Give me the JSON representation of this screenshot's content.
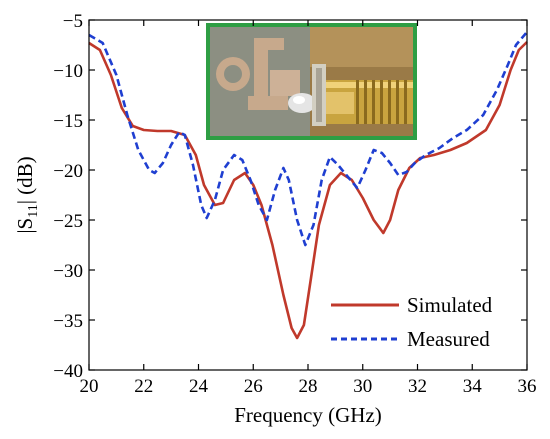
{
  "chart_data": {
    "type": "line",
    "xlabel": "Frequency (GHz)",
    "ylabel_main": "|S",
    "ylabel_sub": "11",
    "ylabel_tail": "| (dB)",
    "xlim": [
      20,
      36
    ],
    "ylim": [
      -40,
      -5
    ],
    "xticks": [
      20,
      22,
      24,
      26,
      28,
      30,
      32,
      34,
      36
    ],
    "yticks": [
      -40,
      -35,
      -30,
      -25,
      -20,
      -15,
      -10,
      -5
    ],
    "grid": false,
    "legend_position": "bottom-right",
    "inset": "antenna-prototype-photo",
    "series": [
      {
        "name": "Simulated",
        "color": "#c0392b",
        "style": "solid",
        "points": [
          [
            20.0,
            -7.3
          ],
          [
            20.4,
            -8.0
          ],
          [
            20.8,
            -10.5
          ],
          [
            21.2,
            -13.8
          ],
          [
            21.6,
            -15.6
          ],
          [
            22.0,
            -16.0
          ],
          [
            22.5,
            -16.1
          ],
          [
            23.0,
            -16.1
          ],
          [
            23.5,
            -16.5
          ],
          [
            23.9,
            -18.5
          ],
          [
            24.2,
            -21.5
          ],
          [
            24.6,
            -23.5
          ],
          [
            24.9,
            -23.3
          ],
          [
            25.3,
            -21.0
          ],
          [
            25.7,
            -20.3
          ],
          [
            26.0,
            -21.5
          ],
          [
            26.3,
            -23.5
          ],
          [
            26.7,
            -27.5
          ],
          [
            27.1,
            -32.5
          ],
          [
            27.4,
            -35.8
          ],
          [
            27.6,
            -36.8
          ],
          [
            27.85,
            -35.5
          ],
          [
            28.1,
            -31.0
          ],
          [
            28.4,
            -25.5
          ],
          [
            28.8,
            -21.5
          ],
          [
            29.2,
            -20.3
          ],
          [
            29.6,
            -21.0
          ],
          [
            30.0,
            -22.8
          ],
          [
            30.4,
            -25.0
          ],
          [
            30.75,
            -26.3
          ],
          [
            31.0,
            -25.0
          ],
          [
            31.3,
            -22.0
          ],
          [
            31.7,
            -19.8
          ],
          [
            32.1,
            -18.8
          ],
          [
            32.6,
            -18.5
          ],
          [
            33.2,
            -18.0
          ],
          [
            33.8,
            -17.3
          ],
          [
            34.5,
            -16.0
          ],
          [
            35.0,
            -13.5
          ],
          [
            35.4,
            -10.0
          ],
          [
            35.7,
            -8.0
          ],
          [
            36.0,
            -7.2
          ]
        ]
      },
      {
        "name": "Measured",
        "color": "#1f3fd1",
        "style": "dashed",
        "points": [
          [
            20.0,
            -6.5
          ],
          [
            20.5,
            -7.3
          ],
          [
            21.0,
            -10.5
          ],
          [
            21.4,
            -14.5
          ],
          [
            21.8,
            -18.0
          ],
          [
            22.2,
            -20.0
          ],
          [
            22.4,
            -20.3
          ],
          [
            22.7,
            -19.3
          ],
          [
            23.0,
            -17.5
          ],
          [
            23.3,
            -16.2
          ],
          [
            23.5,
            -16.5
          ],
          [
            23.8,
            -19.5
          ],
          [
            24.1,
            -23.5
          ],
          [
            24.3,
            -24.8
          ],
          [
            24.6,
            -23.0
          ],
          [
            24.9,
            -20.0
          ],
          [
            25.3,
            -18.5
          ],
          [
            25.6,
            -19.0
          ],
          [
            25.9,
            -21.0
          ],
          [
            26.2,
            -23.5
          ],
          [
            26.5,
            -25.0
          ],
          [
            26.8,
            -22.0
          ],
          [
            27.1,
            -19.8
          ],
          [
            27.3,
            -21.0
          ],
          [
            27.6,
            -25.0
          ],
          [
            27.9,
            -27.5
          ],
          [
            28.2,
            -25.5
          ],
          [
            28.5,
            -21.0
          ],
          [
            28.8,
            -18.7
          ],
          [
            29.1,
            -19.5
          ],
          [
            29.4,
            -20.5
          ],
          [
            29.8,
            -21.8
          ],
          [
            30.1,
            -20.0
          ],
          [
            30.4,
            -18.0
          ],
          [
            30.7,
            -18.3
          ],
          [
            31.0,
            -19.3
          ],
          [
            31.3,
            -20.5
          ],
          [
            31.6,
            -20.2
          ],
          [
            31.9,
            -19.3
          ],
          [
            32.3,
            -18.5
          ],
          [
            32.8,
            -17.8
          ],
          [
            33.3,
            -16.8
          ],
          [
            33.8,
            -16.0
          ],
          [
            34.4,
            -14.5
          ],
          [
            34.9,
            -12.0
          ],
          [
            35.3,
            -9.5
          ],
          [
            35.6,
            -7.5
          ],
          [
            36.0,
            -6.2
          ]
        ]
      }
    ]
  }
}
